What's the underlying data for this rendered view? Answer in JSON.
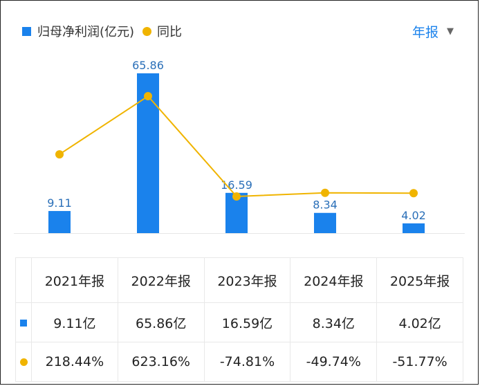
{
  "legend": {
    "bar_label": "归母净利润(亿元)",
    "line_label": "同比"
  },
  "period_selector": {
    "label": "年报",
    "arrow": "▼"
  },
  "colors": {
    "bar": "#1a82ec",
    "line": "#f0b400",
    "positive": "#e0473e",
    "negative": "#1aa36a",
    "bar_label": "#2a6fb8"
  },
  "chart_data": {
    "type": "bar",
    "categories": [
      "2021年报",
      "2022年报",
      "2023年报",
      "2024年报",
      "2025年报"
    ],
    "series": [
      {
        "name": "归母净利润(亿元)",
        "type": "bar",
        "values": [
          9.11,
          65.86,
          16.59,
          8.34,
          4.02
        ],
        "labels": [
          "9.11",
          "65.86",
          "16.59",
          "8.34",
          "4.02"
        ]
      },
      {
        "name": "同比",
        "type": "line",
        "values": [
          218.44,
          623.16,
          -74.81,
          -49.74,
          -51.77
        ]
      }
    ]
  },
  "table": {
    "headers": [
      "2021年报",
      "2022年报",
      "2023年报",
      "2024年报",
      "2025年报"
    ],
    "profit": [
      "9.11亿",
      "65.86亿",
      "16.59亿",
      "8.34亿",
      "4.02亿"
    ],
    "yoy": [
      "218.44%",
      "623.16%",
      "-74.81%",
      "-49.74%",
      "-51.77%"
    ]
  }
}
